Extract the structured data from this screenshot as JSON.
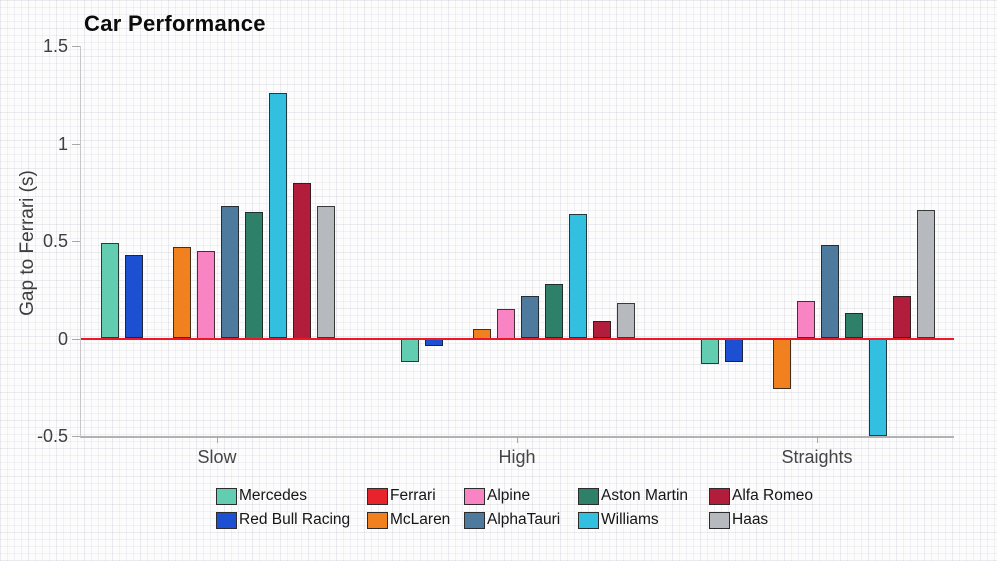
{
  "title": "Car Performance",
  "chart_data": {
    "type": "bar",
    "title": "Car Performance",
    "xlabel": "",
    "ylabel": "Gap to Ferrari (s)",
    "categories": [
      "Slow",
      "High",
      "Straights"
    ],
    "series": [
      {
        "name": "Mercedes",
        "color": "#63CDB1",
        "values": [
          0.49,
          -0.12,
          -0.13
        ]
      },
      {
        "name": "Red Bull Racing",
        "color": "#1C4FD1",
        "values": [
          0.43,
          -0.04,
          -0.12
        ]
      },
      {
        "name": "Ferrari",
        "color": "#E8232B",
        "values": [
          0.0,
          0.0,
          0.0
        ]
      },
      {
        "name": "McLaren",
        "color": "#F1811E",
        "values": [
          0.47,
          0.05,
          -0.26
        ]
      },
      {
        "name": "Alpine",
        "color": "#F884C3",
        "values": [
          0.45,
          0.15,
          0.19
        ]
      },
      {
        "name": "AlphaTauri",
        "color": "#4E7A9D",
        "values": [
          0.68,
          0.22,
          0.48
        ]
      },
      {
        "name": "Aston Martin",
        "color": "#2E8069",
        "values": [
          0.65,
          0.28,
          0.13
        ]
      },
      {
        "name": "Williams",
        "color": "#33BFE0",
        "values": [
          1.26,
          0.64,
          -0.5
        ]
      },
      {
        "name": "Alfa Romeo",
        "color": "#B11D3A",
        "values": [
          0.8,
          0.09,
          0.22
        ]
      },
      {
        "name": "Haas",
        "color": "#B6BABE",
        "values": [
          0.68,
          0.18,
          0.66
        ]
      }
    ],
    "ylim": [
      -0.5,
      1.5
    ],
    "yticks": [
      1.5,
      1.0,
      0.5,
      0.0,
      -0.5
    ],
    "ytick_labels": [
      "1.5",
      "1",
      "0.5",
      "0",
      "-0.5"
    ],
    "grid": "off",
    "zero_line_color": "#EF1726",
    "legend_position": "bottom",
    "legend_rows": [
      [
        "Mercedes",
        "Ferrari",
        "Alpine",
        "Aston Martin",
        "Alfa Romeo"
      ],
      [
        "Red Bull Racing",
        "McLaren",
        "AlphaTauri",
        "Williams",
        "Haas"
      ]
    ]
  }
}
